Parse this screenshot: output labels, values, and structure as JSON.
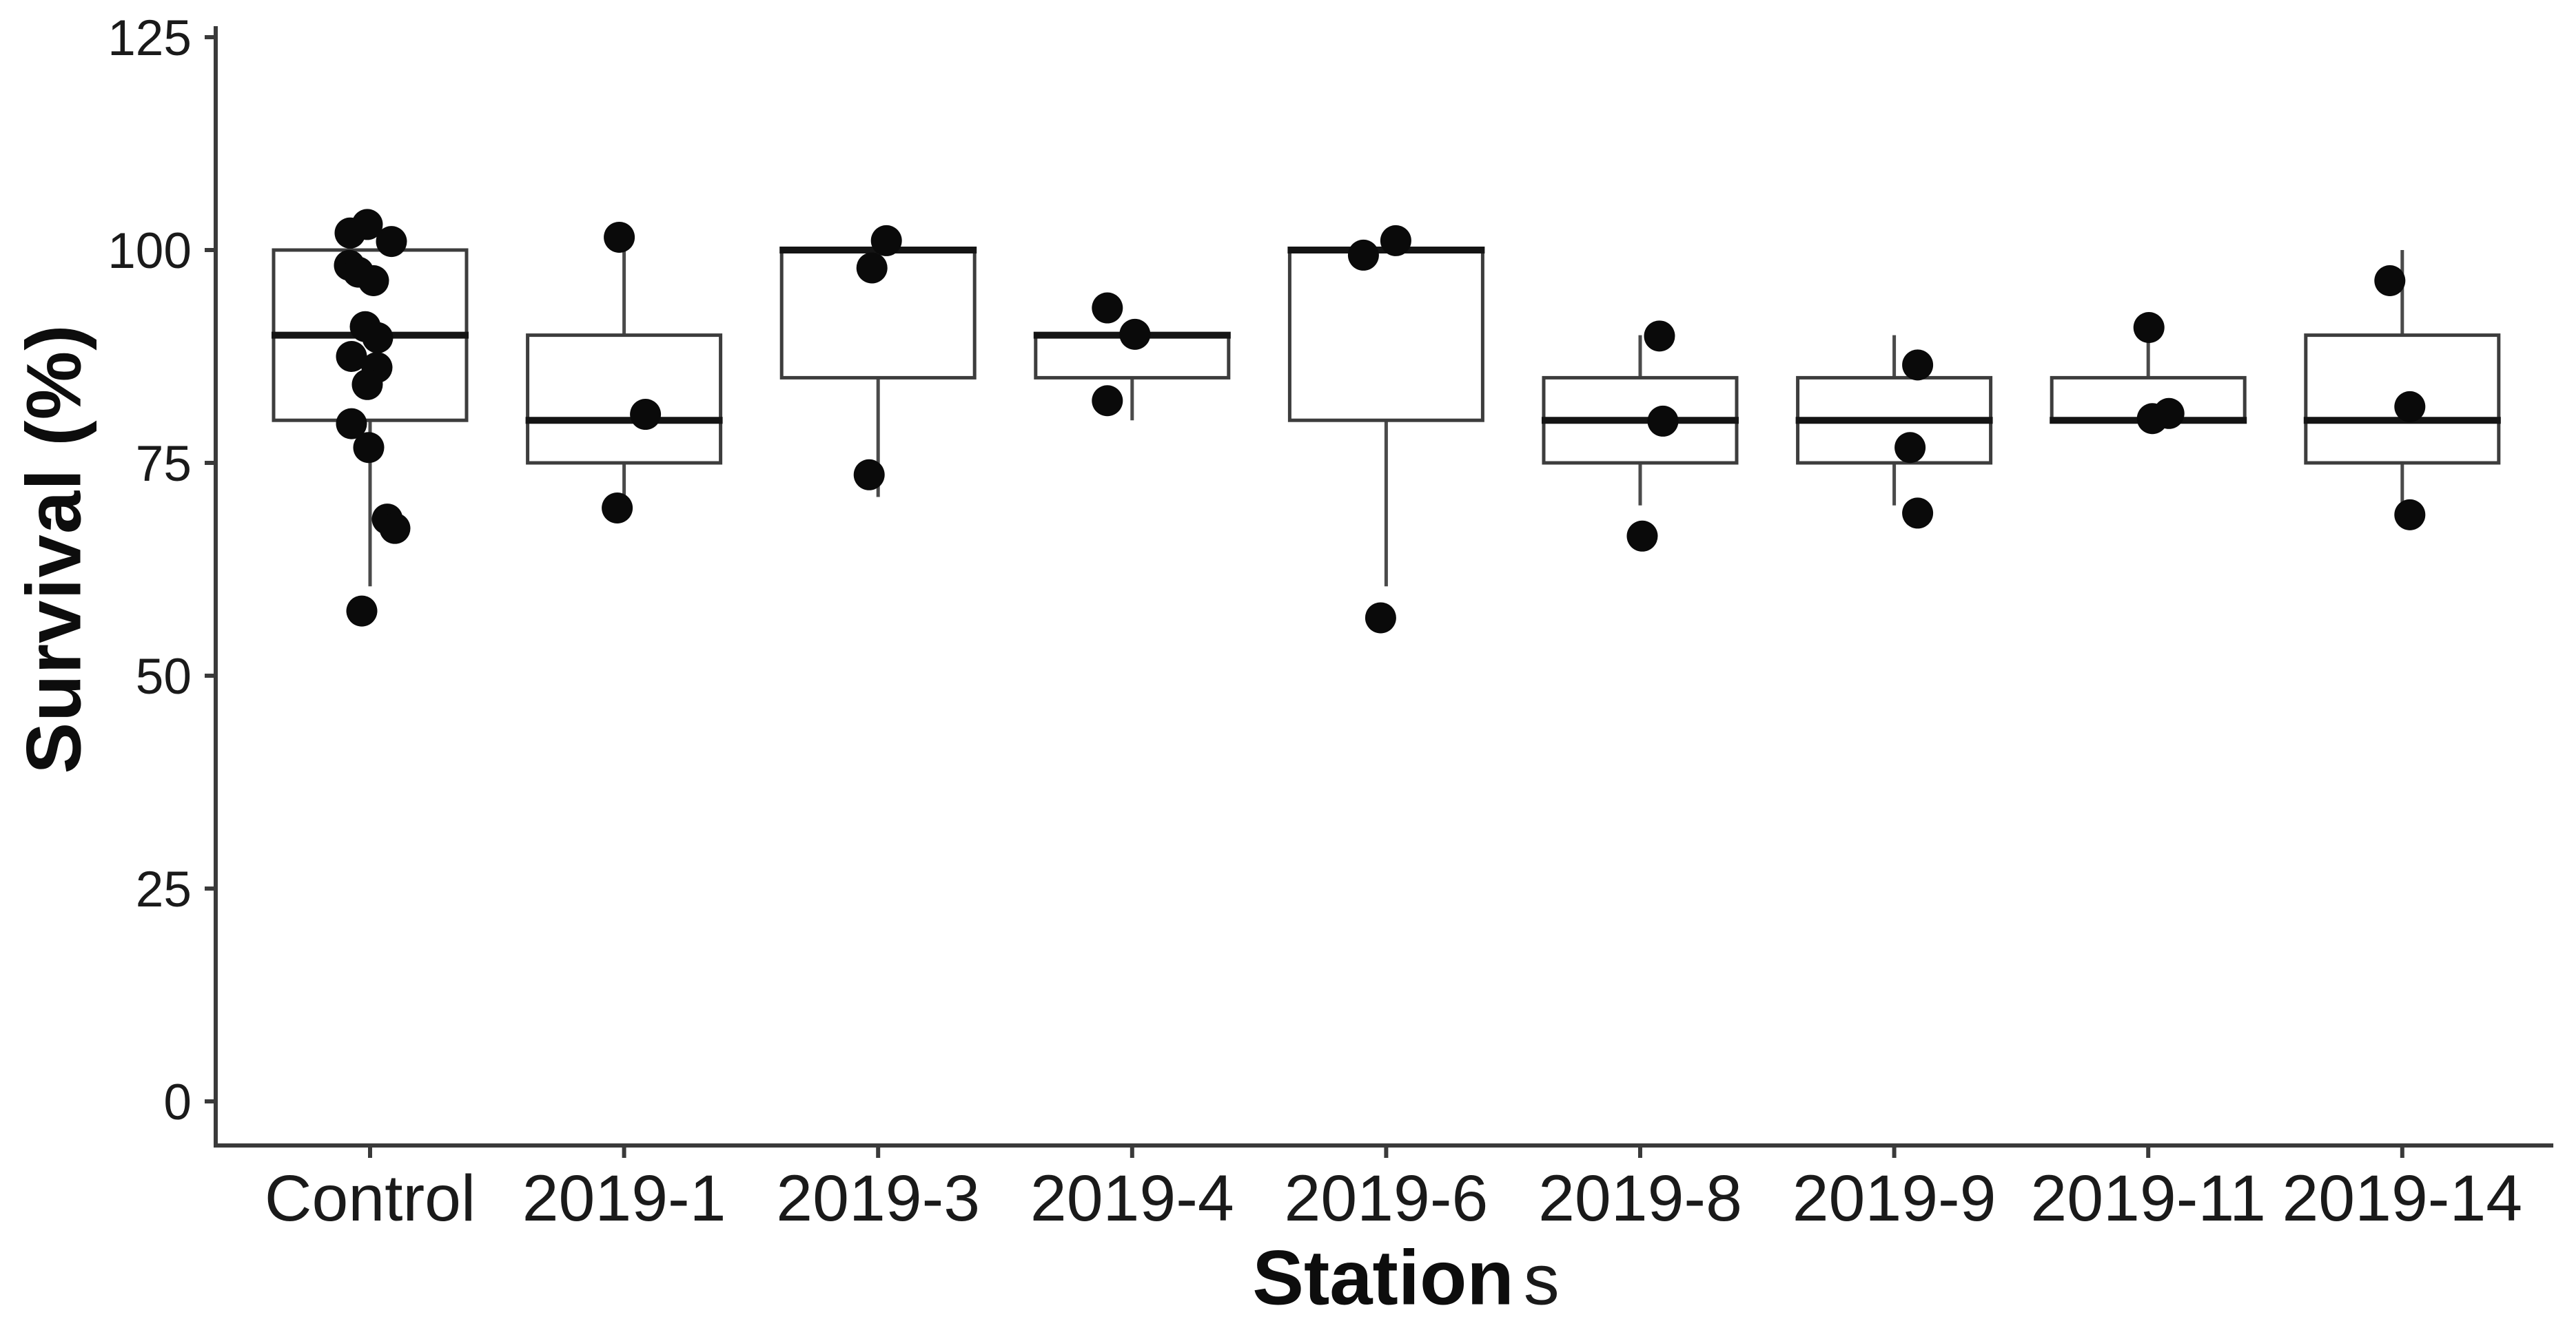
{
  "colors": {
    "background": "#ffffff",
    "axis_line": "#3a3a3a",
    "box_border": "#3d3d3d",
    "median_line": "#141414",
    "whisker": "#4a4a4a",
    "point": "#0a0a0a",
    "tick_label": "#1a1a1a",
    "axis_title": "#0d0d0d"
  },
  "chart_data": {
    "type": "box",
    "title": "",
    "ylabel": "Survival (%)",
    "xlabel": "Stations",
    "xlabel_main": "Station",
    "xlabel_suffix": "s",
    "grid": false,
    "legend_position": "none",
    "ylim": [
      -5.5,
      126
    ],
    "y_ticks": [
      0,
      25,
      50,
      75,
      100,
      125
    ],
    "categories": [
      "Control",
      "2019-1",
      "2019-3",
      "2019-4",
      "2019-6",
      "2019-8",
      "2019-9",
      "2019-11",
      "2019-14"
    ],
    "series": [
      {
        "label": "Control",
        "stats": {
          "whisker_low": 60.5,
          "q1": 80,
          "median": 90,
          "q3": 100,
          "whisker_high": 100
        },
        "points": [
          102,
          103,
          101,
          98.2,
          97.4,
          96.4,
          91,
          89.7,
          87.5,
          86.2,
          84.2,
          79.6,
          76.8,
          68.4,
          67.3,
          57.6
        ],
        "jitter_dx": [
          -29,
          -4,
          31,
          -30,
          -17,
          5,
          -7,
          11,
          -27,
          10,
          -4,
          -27,
          -2,
          25,
          36,
          -12
        ]
      },
      {
        "label": "2019-1",
        "stats": {
          "whisker_low": 71,
          "q1": 75,
          "median": 80,
          "q3": 90,
          "whisker_high": 101.5
        },
        "points": [
          101.5,
          80.7,
          69.7
        ],
        "jitter_dx": [
          -7,
          31,
          -10
        ]
      },
      {
        "label": "2019-3",
        "stats": {
          "whisker_low": 71,
          "q1": 85,
          "median": 100,
          "q3": 100,
          "whisker_high": 100
        },
        "points": [
          101.1,
          97.9,
          73.6
        ],
        "jitter_dx": [
          12,
          -9,
          -13
        ]
      },
      {
        "label": "2019-4",
        "stats": {
          "whisker_low": 80,
          "q1": 85,
          "median": 90,
          "q3": 90,
          "whisker_high": 90
        },
        "points": [
          93.2,
          90.1,
          82.3
        ],
        "jitter_dx": [
          -36,
          4,
          -36
        ]
      },
      {
        "label": "2019-6",
        "stats": {
          "whisker_low": 60.5,
          "q1": 80,
          "median": 100,
          "q3": 100,
          "whisker_high": 100
        },
        "points": [
          101.1,
          99.4,
          56.8
        ],
        "jitter_dx": [
          14,
          -33,
          -8
        ]
      },
      {
        "label": "2019-8",
        "stats": {
          "whisker_low": 70,
          "q1": 75,
          "median": 80,
          "q3": 85,
          "whisker_high": 90
        },
        "points": [
          89.9,
          79.9,
          66.4
        ],
        "jitter_dx": [
          28,
          33,
          3
        ]
      },
      {
        "label": "2019-9",
        "stats": {
          "whisker_low": 70,
          "q1": 75,
          "median": 80,
          "q3": 85,
          "whisker_high": 90
        },
        "points": [
          86.5,
          76.8,
          69.1
        ],
        "jitter_dx": [
          34,
          23,
          34
        ]
      },
      {
        "label": "2019-11",
        "stats": {
          "whisker_low": 80,
          "q1": 80,
          "median": 80,
          "q3": 85,
          "whisker_high": 91
        },
        "points": [
          90.9,
          80.2,
          80.8
        ],
        "jitter_dx": [
          1,
          6,
          30
        ]
      },
      {
        "label": "2019-14",
        "stats": {
          "whisker_low": 70,
          "q1": 75,
          "median": 80,
          "q3": 90,
          "whisker_high": 100
        },
        "points": [
          96.4,
          81.6,
          68.9
        ],
        "jitter_dx": [
          -18,
          11,
          11
        ]
      }
    ]
  }
}
